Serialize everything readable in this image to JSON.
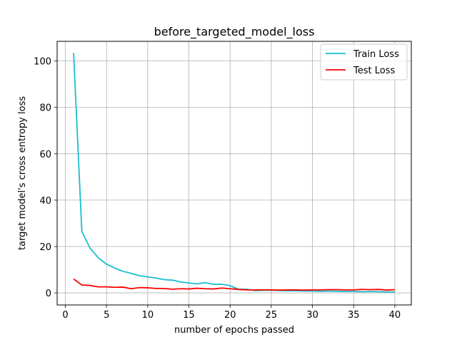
{
  "chart_data": {
    "type": "line",
    "title": "before_targeted_model_loss",
    "xlabel": "number of epochs passed",
    "ylabel": "target model's cross entropy loss",
    "xlim": [
      -1,
      42
    ],
    "ylim": [
      -5.2,
      108.5
    ],
    "xticks": [
      0,
      5,
      10,
      15,
      20,
      25,
      30,
      35,
      40
    ],
    "yticks": [
      0,
      20,
      40,
      60,
      80,
      100
    ],
    "grid": true,
    "legend_position": "top-right",
    "x": [
      1,
      2,
      3,
      4,
      5,
      6,
      7,
      8,
      9,
      10,
      11,
      12,
      13,
      14,
      15,
      16,
      17,
      18,
      19,
      20,
      21,
      22,
      23,
      24,
      25,
      26,
      27,
      28,
      29,
      30,
      31,
      32,
      33,
      34,
      35,
      36,
      37,
      38,
      39,
      40
    ],
    "series": [
      {
        "name": "Train Loss",
        "color": "#17becf",
        "values": [
          103.5,
          26.5,
          19.3,
          15.1,
          12.4,
          10.7,
          9.3,
          8.4,
          7.4,
          6.9,
          6.4,
          5.7,
          5.5,
          4.7,
          4.3,
          3.9,
          4.4,
          3.7,
          3.7,
          3.1,
          1.6,
          1.6,
          1.0,
          1.1,
          1.2,
          1.0,
          0.9,
          0.9,
          0.8,
          0.8,
          0.7,
          0.8,
          0.7,
          0.6,
          0.6,
          0.5,
          0.6,
          0.5,
          0.4,
          0.4
        ]
      },
      {
        "name": "Test Loss",
        "color": "#ff0000",
        "values": [
          6.0,
          3.4,
          3.2,
          2.6,
          2.6,
          2.4,
          2.5,
          1.8,
          2.3,
          2.2,
          1.9,
          1.9,
          1.6,
          1.8,
          1.7,
          2.0,
          1.8,
          1.7,
          2.1,
          1.8,
          1.5,
          1.3,
          1.3,
          1.3,
          1.3,
          1.2,
          1.3,
          1.3,
          1.2,
          1.3,
          1.3,
          1.4,
          1.4,
          1.3,
          1.3,
          1.5,
          1.4,
          1.5,
          1.2,
          1.4
        ]
      }
    ]
  }
}
